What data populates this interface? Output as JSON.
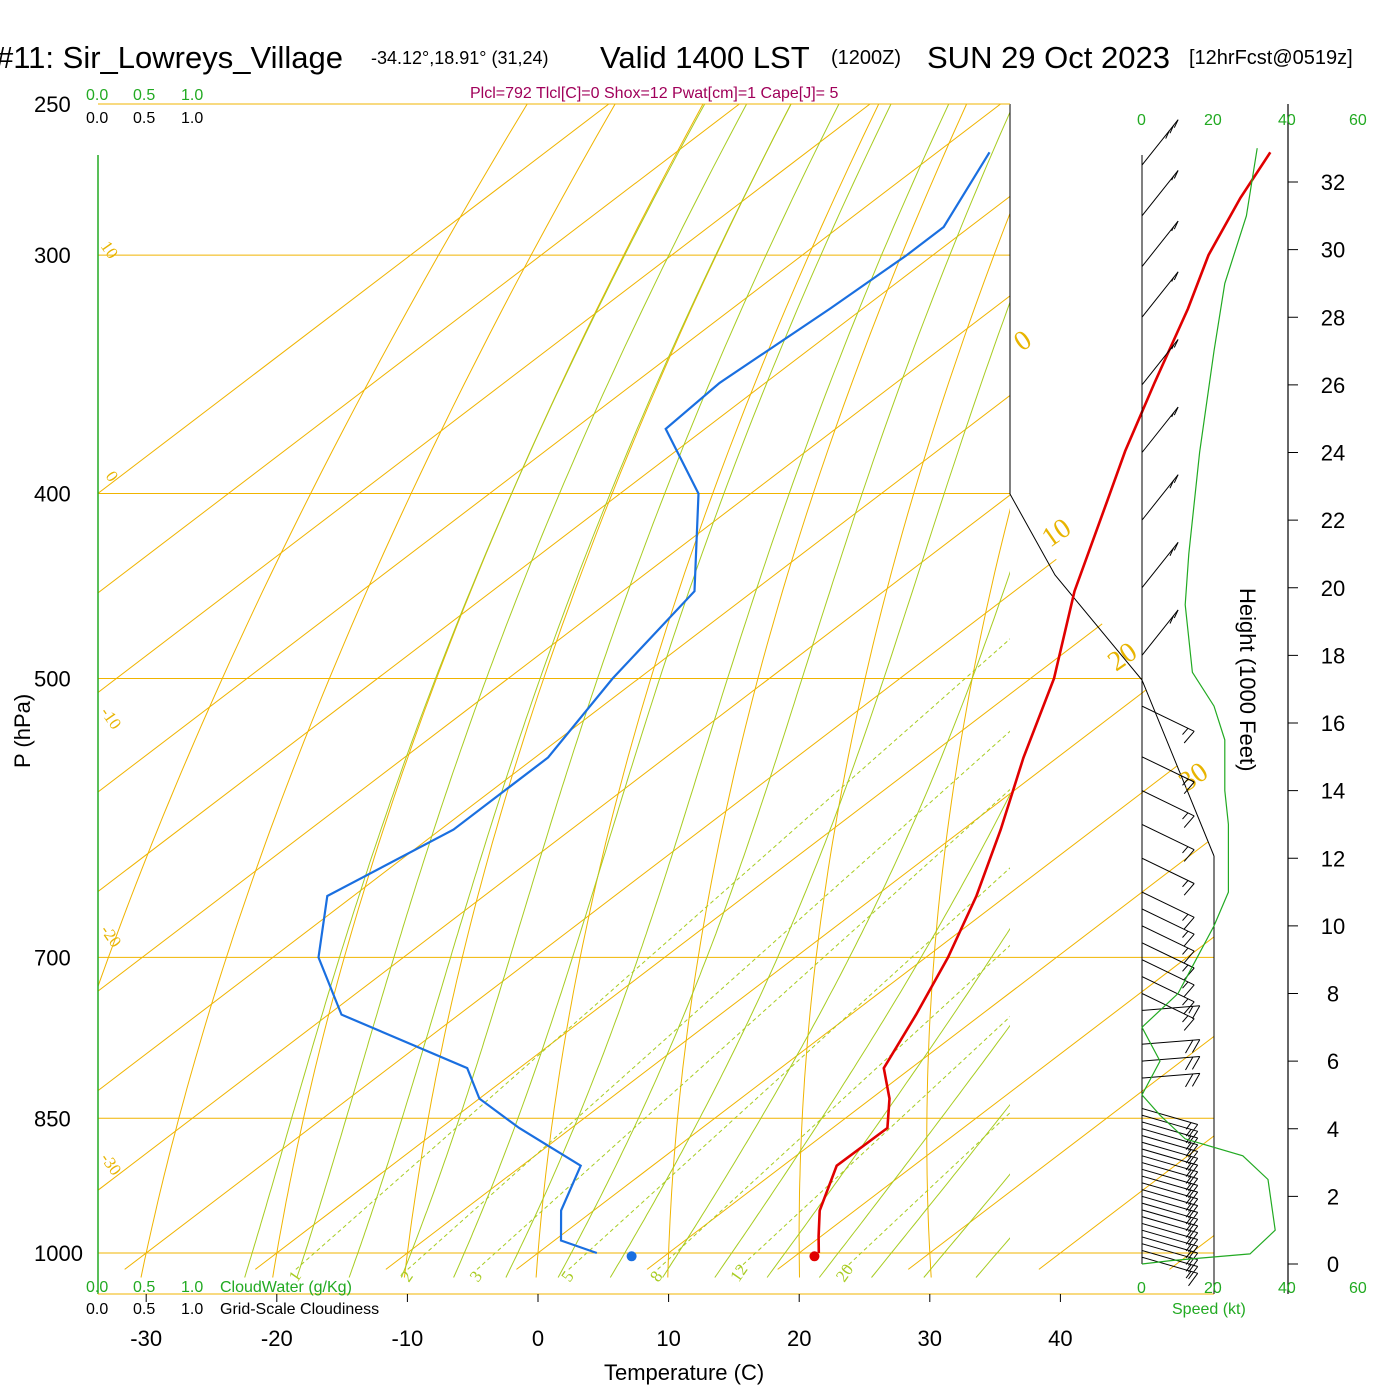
{
  "header": {
    "station": "#11: Sir_Lowreys_Village",
    "location": "-34.12°,18.91° (31,24)",
    "valid": "Valid 1400 LST",
    "utc": "(1200Z)",
    "date": "SUN 29 Oct 2023",
    "forecast": "[12hrFcst@0519z]",
    "indices": "Plcl=792 Tlcl[C]=0 Shox=12 Pwat[cm]=1 Cape[J]= 5"
  },
  "colors": {
    "temperature": "#e00000",
    "dewpoint": "#1a6fe0",
    "isobar_isotherm": "#f0b400",
    "dry_adiabat": "#f0b400",
    "moist_adiabat": "#a8cc22",
    "mixing_ratio": "#a8cc22",
    "wind_speed_profile": "#22aa22",
    "wind_barb": "#000000"
  },
  "top_scales": {
    "cloud_water": [
      "0.0",
      "0.5",
      "1.0"
    ],
    "cloudiness": [
      "0.0",
      "0.5",
      "1.0"
    ]
  },
  "bottom_scales": {
    "cloud_water": [
      "0.0",
      "0.5",
      "1.0"
    ],
    "cloud_water_label": "CloudWater (g/Kg)",
    "cloudiness": [
      "0.0",
      "0.5",
      "1.0"
    ],
    "cloudiness_label": "Grid-Scale Cloudiness"
  },
  "speed_axis": {
    "ticks_top": [
      "0",
      "20",
      "40",
      "60"
    ],
    "ticks_bottom": [
      "0",
      "20",
      "40",
      "60"
    ],
    "label": "Speed (kt)"
  },
  "chart_data": {
    "type": "line",
    "title": "",
    "xlabel": "Temperature (C)",
    "ylabel": "P (hPa)",
    "y2label": "Height (1000 Feet)",
    "x_ticks": [
      -30,
      -20,
      -10,
      0,
      10,
      20,
      30,
      40
    ],
    "y_ticks": [
      250,
      300,
      400,
      500,
      700,
      850,
      1000
    ],
    "height_ticks_kft": [
      0,
      2,
      4,
      6,
      8,
      10,
      12,
      14,
      16,
      18,
      20,
      22,
      24,
      26,
      28,
      30,
      32
    ],
    "ylim_hpa": [
      250,
      1020
    ],
    "y_scale": "log",
    "dry_adiabat_labels": [
      "10",
      "0",
      "-10",
      "-20",
      "-30"
    ],
    "dry_adiabat_right_labels": [
      "0",
      "10",
      "20",
      "30"
    ],
    "mixing_ratio_labels": [
      "1",
      "2",
      "3",
      "5",
      "8",
      "12",
      "20"
    ],
    "series": [
      {
        "name": "Temperature",
        "points": [
          {
            "p": 265,
            "t": -54.5
          },
          {
            "p": 280,
            "t": -52.2
          },
          {
            "p": 300,
            "t": -48.9
          },
          {
            "p": 320,
            "t": -45.1
          },
          {
            "p": 350,
            "t": -40.2
          },
          {
            "p": 380,
            "t": -35.6
          },
          {
            "p": 400,
            "t": -32.5
          },
          {
            "p": 450,
            "t": -25.4
          },
          {
            "p": 500,
            "t": -18.2
          },
          {
            "p": 550,
            "t": -12.6
          },
          {
            "p": 600,
            "t": -7.1
          },
          {
            "p": 650,
            "t": -2.3
          },
          {
            "p": 700,
            "t": 1.7
          },
          {
            "p": 750,
            "t": 5.0
          },
          {
            "p": 800,
            "t": 7.9
          },
          {
            "p": 830,
            "t": 11.4
          },
          {
            "p": 860,
            "t": 14.2
          },
          {
            "p": 900,
            "t": 14.1
          },
          {
            "p": 950,
            "t": 17.3
          },
          {
            "p": 980,
            "t": 19.8
          },
          {
            "p": 1000,
            "t": 21.5
          }
        ],
        "surface_marker": {
          "p": 1004,
          "t": 21.5
        }
      },
      {
        "name": "Dewpoint",
        "points": [
          {
            "p": 265,
            "t": -76.0
          },
          {
            "p": 290,
            "t": -72.0
          },
          {
            "p": 300,
            "t": -72.0
          },
          {
            "p": 320,
            "t": -72.5
          },
          {
            "p": 350,
            "t": -73.5
          },
          {
            "p": 370,
            "t": -73.0
          },
          {
            "p": 400,
            "t": -64.0
          },
          {
            "p": 450,
            "t": -54.5
          },
          {
            "p": 500,
            "t": -52.0
          },
          {
            "p": 550,
            "t": -49.0
          },
          {
            "p": 600,
            "t": -49.0
          },
          {
            "p": 650,
            "t": -52.0
          },
          {
            "p": 700,
            "t": -46.5
          },
          {
            "p": 750,
            "t": -39.0
          },
          {
            "p": 800,
            "t": -24.0
          },
          {
            "p": 830,
            "t": -20.0
          },
          {
            "p": 860,
            "t": -14.0
          },
          {
            "p": 900,
            "t": -5.5
          },
          {
            "p": 950,
            "t": -2.5
          },
          {
            "p": 985,
            "t": 0.5
          },
          {
            "p": 1000,
            "t": 4.5
          }
        ],
        "surface_marker": {
          "p": 1004,
          "t": 7.5
        }
      }
    ],
    "wind_speed_profile": [
      {
        "h": 0.0,
        "s": 0
      },
      {
        "h": 0.1,
        "s": 8
      },
      {
        "h": 0.3,
        "s": 30
      },
      {
        "h": 1.0,
        "s": 37
      },
      {
        "h": 2.5,
        "s": 35
      },
      {
        "h": 3.2,
        "s": 28
      },
      {
        "h": 3.7,
        "s": 12
      },
      {
        "h": 4.4,
        "s": 5
      },
      {
        "h": 5.0,
        "s": 0
      },
      {
        "h": 6.0,
        "s": 5
      },
      {
        "h": 7.0,
        "s": 0
      },
      {
        "h": 8.0,
        "s": 10
      },
      {
        "h": 9.0,
        "s": 15
      },
      {
        "h": 10.0,
        "s": 20
      },
      {
        "h": 11.0,
        "s": 24
      },
      {
        "h": 12.0,
        "s": 24
      },
      {
        "h": 13.0,
        "s": 24
      },
      {
        "h": 14.0,
        "s": 23
      },
      {
        "h": 15.5,
        "s": 23
      },
      {
        "h": 16.5,
        "s": 20
      },
      {
        "h": 17.5,
        "s": 14
      },
      {
        "h": 19.5,
        "s": 12
      },
      {
        "h": 21.0,
        "s": 13
      },
      {
        "h": 24.0,
        "s": 16
      },
      {
        "h": 27.0,
        "s": 20
      },
      {
        "h": 29.0,
        "s": 23
      },
      {
        "h": 31.0,
        "s": 29
      },
      {
        "h": 33.0,
        "s": 32
      }
    ],
    "wind_barbs": [
      {
        "h": 0.2,
        "s": 15
      },
      {
        "h": 0.4,
        "s": 15
      },
      {
        "h": 0.6,
        "s": 15
      },
      {
        "h": 0.8,
        "s": 15
      },
      {
        "h": 1.0,
        "s": 15
      },
      {
        "h": 1.2,
        "s": 15
      },
      {
        "h": 1.4,
        "s": 15
      },
      {
        "h": 1.6,
        "s": 15
      },
      {
        "h": 1.8,
        "s": 15
      },
      {
        "h": 2.0,
        "s": 15
      },
      {
        "h": 2.2,
        "s": 15
      },
      {
        "h": 2.4,
        "s": 15
      },
      {
        "h": 2.6,
        "s": 15
      },
      {
        "h": 2.8,
        "s": 15
      },
      {
        "h": 3.0,
        "s": 15
      },
      {
        "h": 3.2,
        "s": 15
      },
      {
        "h": 3.4,
        "s": 15
      },
      {
        "h": 3.6,
        "s": 15
      },
      {
        "h": 3.8,
        "s": 15
      },
      {
        "h": 4.0,
        "s": 15
      },
      {
        "h": 4.2,
        "s": 15
      },
      {
        "h": 4.4,
        "s": 15
      },
      {
        "h": 4.6,
        "s": 15
      },
      {
        "h": 5.5,
        "s": 10
      },
      {
        "h": 6.0,
        "s": 10
      },
      {
        "h": 6.5,
        "s": 10
      },
      {
        "h": 7.5,
        "s": 15
      },
      {
        "h": 8.0,
        "s": 15
      },
      {
        "h": 8.5,
        "s": 15
      },
      {
        "h": 9.0,
        "s": 15
      },
      {
        "h": 9.5,
        "s": 15
      },
      {
        "h": 10.0,
        "s": 15
      },
      {
        "h": 10.5,
        "s": 15
      },
      {
        "h": 11.0,
        "s": 15
      },
      {
        "h": 12.0,
        "s": 15
      },
      {
        "h": 13.0,
        "s": 15
      },
      {
        "h": 14.0,
        "s": 15
      },
      {
        "h": 15.0,
        "s": 15
      },
      {
        "h": 16.5,
        "s": 15
      },
      {
        "h": 18.0,
        "s": 10
      },
      {
        "h": 20.0,
        "s": 10
      },
      {
        "h": 22.0,
        "s": 10
      },
      {
        "h": 24.0,
        "s": 15
      },
      {
        "h": 26.0,
        "s": 15
      },
      {
        "h": 28.0,
        "s": 15
      },
      {
        "h": 29.5,
        "s": 15
      },
      {
        "h": 31.0,
        "s": 15
      },
      {
        "h": 32.5,
        "s": 20
      }
    ]
  }
}
